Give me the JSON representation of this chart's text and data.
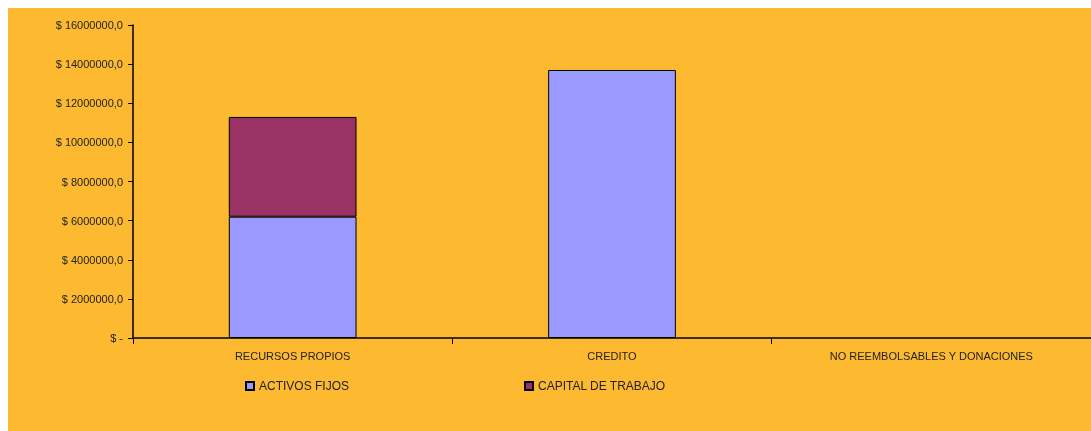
{
  "chart_data": {
    "type": "bar",
    "stacked": true,
    "categories": [
      "RECURSOS PROPIOS",
      "CREDITO",
      "NO REEMBOLSABLES Y DONACIONES"
    ],
    "series": [
      {
        "name": "ACTIVOS FIJOS",
        "color": "#9999ff",
        "values": [
          6200000,
          13700000,
          null
        ]
      },
      {
        "name": "CAPITAL DE TRABAJO",
        "color": "#993366",
        "values": [
          5100000,
          null,
          null
        ]
      }
    ],
    "ylim": [
      0,
      16000000
    ],
    "yticks": [
      {
        "value": 0,
        "label": "$ -"
      },
      {
        "value": 2000000,
        "label": "$ 2000000,0"
      },
      {
        "value": 4000000,
        "label": "$ 4000000,0"
      },
      {
        "value": 6000000,
        "label": "$ 6000000,0"
      },
      {
        "value": 8000000,
        "label": "$ 8000000,0"
      },
      {
        "value": 10000000,
        "label": "$ 10000000,0"
      },
      {
        "value": 12000000,
        "label": "$ 12000000,0"
      },
      {
        "value": 14000000,
        "label": "$ 14000000,0"
      },
      {
        "value": 16000000,
        "label": "$ 16000000,0"
      }
    ],
    "grid": false,
    "legend": "bottom"
  }
}
